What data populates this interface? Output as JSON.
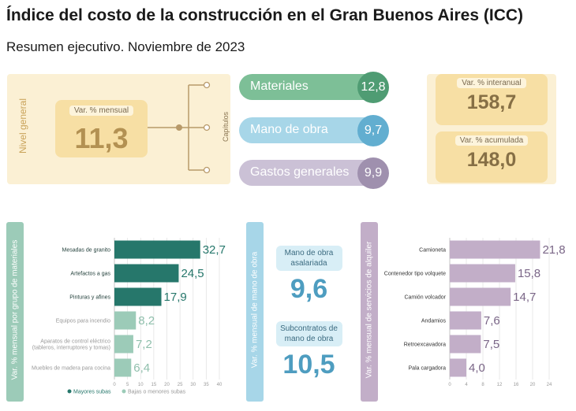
{
  "header": {
    "title": "Índice del costo de la construcción en el Gran Buenos Aires (ICC)",
    "subtitle": "Resumen ejecutivo. Noviembre de 2023"
  },
  "nivel_general": {
    "label": "Nivel general",
    "mensual_label": "Var. % mensual",
    "mensual_value": "11,3"
  },
  "capitulos": {
    "label": "Capítulos",
    "items": [
      {
        "label": "Materiales",
        "value": "12,8"
      },
      {
        "label": "Mano de obra",
        "value": "9,7"
      },
      {
        "label": "Gastos generales",
        "value": "9,9"
      }
    ]
  },
  "resumen": {
    "interanual_label": "Var. % interanual",
    "interanual_value": "158,7",
    "acumulada_label": "Var. % acumulada",
    "acumulada_value": "148,0"
  },
  "mano_obra": {
    "panel_label": "Var. % mensual de mano de obra",
    "asalariada_label": "Mano de obra asalariada",
    "asalariada_value": "9,6",
    "subcontratos_label": "Subcontratos de mano de obra",
    "subcontratos_value": "10,5"
  },
  "colors": {
    "materiales": "#7dbf97",
    "mano_obra": "#a7d6e8",
    "gastos": "#cbc1d6",
    "teal_dark": "#26776b",
    "teal_light": "#9ccbb8",
    "purple": "#c2aec8"
  },
  "chart_data": [
    {
      "type": "bar",
      "orientation": "horizontal",
      "panel_label": "Var. % mensual por grupo de materiales",
      "categories": [
        "Mesadas de granito",
        "Artefactos a gas",
        "Pinturas y afines",
        "Equipos para incendio",
        "Aparatos de control eléctrico (tableros, interruptores y tomas)",
        "Muebles de madera para cocina"
      ],
      "category_lines": [
        [
          "Mesadas de granito"
        ],
        [
          "Artefactos a gas"
        ],
        [
          "Pinturas y afines"
        ],
        [
          "Equipos para incendio"
        ],
        [
          "Aparatos de control eléctrico",
          "(tableros, interruptores y tomas)"
        ],
        [
          "Muebles de madera para cocina"
        ]
      ],
      "values": [
        32.7,
        24.5,
        17.9,
        8.2,
        7.2,
        6.4
      ],
      "value_labels": [
        "32,7",
        "24,5",
        "17,9",
        "8,2",
        "7,2",
        "6,4"
      ],
      "groups": [
        "Mayores subas",
        "Mayores subas",
        "Mayores subas",
        "Bajas o menores subas",
        "Bajas o menores subas",
        "Bajas o menores subas"
      ],
      "legend": [
        "Mayores subas",
        "Bajas o menores subas"
      ],
      "xlim": [
        0,
        40
      ],
      "ticks": [
        "0",
        "5",
        "10",
        "15",
        "20",
        "25",
        "30",
        "35",
        "40"
      ],
      "grid": true
    },
    {
      "type": "bar",
      "orientation": "horizontal",
      "panel_label": "Var. % mensual de servicios de alquiler",
      "categories": [
        "Camioneta",
        "Contenedor tipo volquete",
        "Camión volcador",
        "Andamios",
        "Retroexcavadora",
        "Pala cargadora"
      ],
      "category_lines": [
        [
          "Camioneta"
        ],
        [
          "Contenedor tipo volquete"
        ],
        [
          "Camión volcador"
        ],
        [
          "Andamios"
        ],
        [
          "Retroexcavadora"
        ],
        [
          "Pala cargadora"
        ]
      ],
      "values": [
        21.8,
        15.8,
        14.7,
        7.6,
        7.5,
        4.0
      ],
      "value_labels": [
        "21,8",
        "15,8",
        "14,7",
        "7,6",
        "7,5",
        "4,0"
      ],
      "xlim": [
        0,
        24
      ],
      "ticks": [
        "0",
        "4",
        "8",
        "12",
        "16",
        "20",
        "24"
      ],
      "grid": true
    }
  ]
}
